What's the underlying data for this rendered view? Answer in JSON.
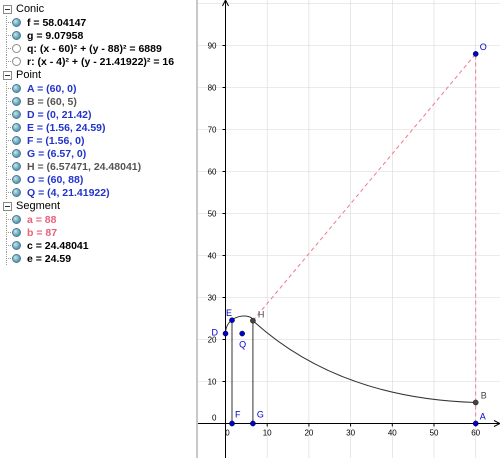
{
  "algebra": {
    "groups": [
      {
        "title": "Conic",
        "items": [
          {
            "text": "f = 58.04147",
            "color": "#000000",
            "shown": true
          },
          {
            "text": "g = 9.07958",
            "color": "#000000",
            "shown": true
          },
          {
            "text": "q: (x - 60)² + (y - 88)² = 6889",
            "color": "#000000",
            "shown": false
          },
          {
            "text": "r: (x - 4)² + (y - 21.41922)² = 16",
            "color": "#000000",
            "shown": false
          }
        ]
      },
      {
        "title": "Point",
        "items": [
          {
            "text": "A = (60, 0)",
            "color": "#2233cc",
            "shown": true
          },
          {
            "text": "B = (60, 5)",
            "color": "#555555",
            "shown": true
          },
          {
            "text": "D = (0, 21.42)",
            "color": "#2233cc",
            "shown": true
          },
          {
            "text": "E = (1.56, 24.59)",
            "color": "#2233cc",
            "shown": true
          },
          {
            "text": "F = (1.56, 0)",
            "color": "#2233cc",
            "shown": true
          },
          {
            "text": "G = (6.57, 0)",
            "color": "#2233cc",
            "shown": true
          },
          {
            "text": "H = (6.57471, 24.48041)",
            "color": "#555555",
            "shown": true
          },
          {
            "text": "O = (60, 88)",
            "color": "#2233cc",
            "shown": true
          },
          {
            "text": "Q = (4, 21.41922)",
            "color": "#2233cc",
            "shown": true
          }
        ]
      },
      {
        "title": "Segment",
        "items": [
          {
            "text": "a = 88",
            "color": "#e8607a",
            "shown": true
          },
          {
            "text": "b = 87",
            "color": "#e8607a",
            "shown": true
          },
          {
            "text": "c = 24.48041",
            "color": "#000000",
            "shown": true
          },
          {
            "text": "e = 24.59",
            "color": "#000000",
            "shown": true
          }
        ]
      }
    ]
  },
  "graphics": {
    "x_ticks": [
      "0",
      "10",
      "20",
      "30",
      "40",
      "50",
      "60"
    ],
    "y_ticks": [
      "0",
      "10",
      "20",
      "30",
      "40",
      "50",
      "60",
      "70",
      "80",
      "90"
    ],
    "point_labels": {
      "O": "O",
      "H": "H",
      "E": "E",
      "D": "D",
      "Q": "Q",
      "B": "B",
      "A": "A",
      "F": "F",
      "G": "G"
    },
    "colors": {
      "point": "#0000cc",
      "point_dark": "#444444",
      "dashed": "#f07a90",
      "curve": "#333333",
      "axis": "#000000",
      "grid": "#d8d8d8"
    }
  }
}
